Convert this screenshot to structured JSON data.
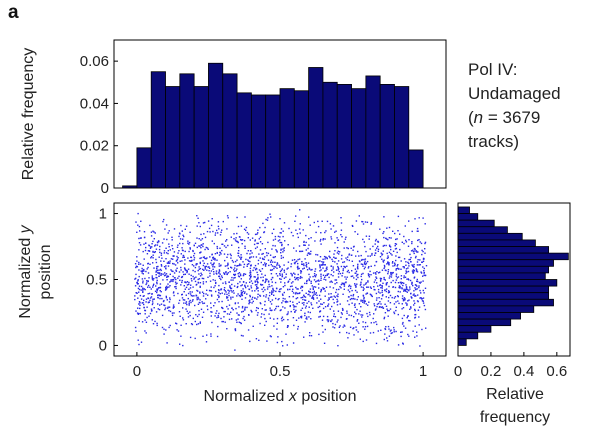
{
  "panel_label": "a",
  "annotation": {
    "line1": "Pol IV:",
    "line2": "Undamaged",
    "line3_prefix": "(",
    "line3_n": "n",
    "line3_rest": " = 3679",
    "line4": "tracks)"
  },
  "colors": {
    "bar_fill": "#0a0a78",
    "point_color": "#2a2ae6",
    "axis": "#000000"
  },
  "chart_data": [
    {
      "type": "bar",
      "ylabel": "Relative frequency",
      "bins_x": [
        -0.05,
        0.0,
        0.05,
        0.1,
        0.15,
        0.2,
        0.25,
        0.3,
        0.35,
        0.4,
        0.45,
        0.5,
        0.55,
        0.6,
        0.65,
        0.7,
        0.75,
        0.8,
        0.85,
        0.9,
        0.95,
        1.0
      ],
      "values": [
        0.001,
        0.019,
        0.055,
        0.048,
        0.054,
        0.048,
        0.059,
        0.054,
        0.045,
        0.044,
        0.044,
        0.047,
        0.046,
        0.057,
        0.05,
        0.049,
        0.047,
        0.053,
        0.049,
        0.048,
        0.018
      ],
      "xlim": [
        -0.08,
        1.08
      ],
      "ylim": [
        0,
        0.07
      ],
      "yticks": [
        "0",
        "0.02",
        "0.04",
        "0.06"
      ]
    },
    {
      "type": "scatter",
      "xlabel_prefix": "Normalized ",
      "xlabel_italic": "x",
      "xlabel_suffix": " position",
      "ylabel_prefix": "Normalized ",
      "ylabel_italic": "y",
      "ylabel_line2": "position",
      "n_points": 3679,
      "xlim": [
        -0.08,
        1.08
      ],
      "ylim": [
        -0.08,
        1.08
      ],
      "xticks": [
        "0",
        "0.5",
        "1"
      ],
      "yticks": [
        "0",
        "0.5",
        "1"
      ]
    },
    {
      "type": "bar",
      "orientation": "horizontal",
      "xlabel_line1": "Relative",
      "xlabel_line2": "frequency",
      "bins_y": [
        1.0,
        0.95,
        0.9,
        0.85,
        0.8,
        0.75,
        0.7,
        0.65,
        0.6,
        0.55,
        0.5,
        0.45,
        0.4,
        0.35,
        0.3,
        0.25,
        0.2,
        0.15,
        0.1,
        0.05,
        0.0
      ],
      "values": [
        0.07,
        0.12,
        0.22,
        0.3,
        0.39,
        0.47,
        0.55,
        0.67,
        0.58,
        0.55,
        0.53,
        0.6,
        0.55,
        0.55,
        0.58,
        0.46,
        0.38,
        0.32,
        0.2,
        0.12,
        0.05
      ],
      "xlim": [
        0,
        0.68
      ],
      "ylim": [
        -0.08,
        1.08
      ],
      "xticks": [
        "0",
        "0.2",
        "0.4",
        "0.6"
      ]
    }
  ]
}
